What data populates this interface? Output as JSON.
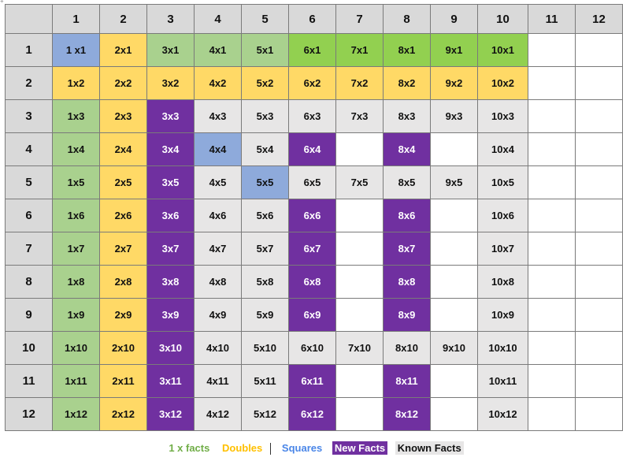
{
  "colors": {
    "ones": "#a9d18e",
    "ones_row": "#92d050",
    "doubles": "#ffd966",
    "squares": "#8eaadb",
    "new": "#7030a0",
    "known": "#e7e6e6",
    "header": "#d9d9d9"
  },
  "column_headers": [
    "1",
    "2",
    "3",
    "4",
    "5",
    "6",
    "7",
    "8",
    "9",
    "10",
    "11",
    "12"
  ],
  "rows": [
    {
      "label": "1",
      "cells": [
        [
          "1 x1",
          "squares"
        ],
        [
          "2x1",
          "doubles"
        ],
        [
          "3x1",
          "ones"
        ],
        [
          "4x1",
          "ones"
        ],
        [
          "5x1",
          "ones"
        ],
        [
          "6x1",
          "onesb"
        ],
        [
          "7x1",
          "onesb"
        ],
        [
          "8x1",
          "onesb"
        ],
        [
          "9x1",
          "onesb"
        ],
        [
          "10x1",
          "onesb"
        ],
        [
          "",
          "empty"
        ],
        [
          "",
          "empty"
        ]
      ]
    },
    {
      "label": "2",
      "cells": [
        [
          "1x2",
          "doubles"
        ],
        [
          "2x2",
          "doubles"
        ],
        [
          "3x2",
          "doubles"
        ],
        [
          "4x2",
          "doubles"
        ],
        [
          "5x2",
          "doubles"
        ],
        [
          "6x2",
          "doubles"
        ],
        [
          "7x2",
          "doubles"
        ],
        [
          "8x2",
          "doubles"
        ],
        [
          "9x2",
          "doubles"
        ],
        [
          "10x2",
          "doubles"
        ],
        [
          "",
          "empty"
        ],
        [
          "",
          "empty"
        ]
      ]
    },
    {
      "label": "3",
      "cells": [
        [
          "1x3",
          "ones"
        ],
        [
          "2x3",
          "doubles"
        ],
        [
          "3x3",
          "new"
        ],
        [
          "4x3",
          "known"
        ],
        [
          "5x3",
          "known"
        ],
        [
          "6x3",
          "known"
        ],
        [
          "7x3",
          "known"
        ],
        [
          "8x3",
          "known"
        ],
        [
          "9x3",
          "known"
        ],
        [
          "10x3",
          "known"
        ],
        [
          "",
          "empty"
        ],
        [
          "",
          "empty"
        ]
      ]
    },
    {
      "label": "4",
      "cells": [
        [
          "1x4",
          "ones"
        ],
        [
          "2x4",
          "doubles"
        ],
        [
          "3x4",
          "new"
        ],
        [
          "4x4",
          "squares"
        ],
        [
          "5x4",
          "known"
        ],
        [
          "6x4",
          "new"
        ],
        [
          "",
          "empty"
        ],
        [
          "8x4",
          "new"
        ],
        [
          "",
          "empty"
        ],
        [
          "10x4",
          "known"
        ],
        [
          "",
          "empty"
        ],
        [
          "",
          "empty"
        ]
      ]
    },
    {
      "label": "5",
      "cells": [
        [
          "1x5",
          "ones"
        ],
        [
          "2x5",
          "doubles"
        ],
        [
          "3x5",
          "new"
        ],
        [
          "4x5",
          "known"
        ],
        [
          "5x5",
          "squares"
        ],
        [
          "6x5",
          "known"
        ],
        [
          "7x5",
          "known"
        ],
        [
          "8x5",
          "known"
        ],
        [
          "9x5",
          "known"
        ],
        [
          "10x5",
          "known"
        ],
        [
          "",
          "empty"
        ],
        [
          "",
          "empty"
        ]
      ]
    },
    {
      "label": "6",
      "cells": [
        [
          "1x6",
          "ones"
        ],
        [
          "2x6",
          "doubles"
        ],
        [
          "3x6",
          "new"
        ],
        [
          "4x6",
          "known"
        ],
        [
          "5x6",
          "known"
        ],
        [
          "6x6",
          "new"
        ],
        [
          "",
          "empty"
        ],
        [
          "8x6",
          "new"
        ],
        [
          "",
          "empty"
        ],
        [
          "10x6",
          "known"
        ],
        [
          "",
          "empty"
        ],
        [
          "",
          "empty"
        ]
      ]
    },
    {
      "label": "7",
      "cells": [
        [
          "1x7",
          "ones"
        ],
        [
          "2x7",
          "doubles"
        ],
        [
          "3x7",
          "new"
        ],
        [
          "4x7",
          "known"
        ],
        [
          "5x7",
          "known"
        ],
        [
          "6x7",
          "new"
        ],
        [
          "",
          "empty"
        ],
        [
          "8x7",
          "new"
        ],
        [
          "",
          "empty"
        ],
        [
          "10x7",
          "known"
        ],
        [
          "",
          "empty"
        ],
        [
          "",
          "empty"
        ]
      ]
    },
    {
      "label": "8",
      "cells": [
        [
          "1x8",
          "ones"
        ],
        [
          "2x8",
          "doubles"
        ],
        [
          "3x8",
          "new"
        ],
        [
          "4x8",
          "known"
        ],
        [
          "5x8",
          "known"
        ],
        [
          "6x8",
          "new"
        ],
        [
          "",
          "empty"
        ],
        [
          "8x8",
          "new"
        ],
        [
          "",
          "empty"
        ],
        [
          "10x8",
          "known"
        ],
        [
          "",
          "empty"
        ],
        [
          "",
          "empty"
        ]
      ]
    },
    {
      "label": "9",
      "cells": [
        [
          "1x9",
          "ones"
        ],
        [
          "2x9",
          "doubles"
        ],
        [
          "3x9",
          "new"
        ],
        [
          "4x9",
          "known"
        ],
        [
          "5x9",
          "known"
        ],
        [
          "6x9",
          "new"
        ],
        [
          "",
          "empty"
        ],
        [
          "8x9",
          "new"
        ],
        [
          "",
          "empty"
        ],
        [
          "10x9",
          "known"
        ],
        [
          "",
          "empty"
        ],
        [
          "",
          "empty"
        ]
      ]
    },
    {
      "label": "10",
      "cells": [
        [
          "1x10",
          "ones"
        ],
        [
          "2x10",
          "doubles"
        ],
        [
          "3x10",
          "new"
        ],
        [
          "4x10",
          "known"
        ],
        [
          "5x10",
          "known"
        ],
        [
          "6x10",
          "known"
        ],
        [
          "7x10",
          "known"
        ],
        [
          "8x10",
          "known"
        ],
        [
          "9x10",
          "known"
        ],
        [
          "10x10",
          "known"
        ],
        [
          "",
          "empty"
        ],
        [
          "",
          "empty"
        ]
      ]
    },
    {
      "label": "11",
      "cells": [
        [
          "1x11",
          "ones"
        ],
        [
          "2x11",
          "doubles"
        ],
        [
          "3x11",
          "new"
        ],
        [
          "4x11",
          "known"
        ],
        [
          "5x11",
          "known"
        ],
        [
          "6x11",
          "new"
        ],
        [
          "",
          "empty"
        ],
        [
          "8x11",
          "new"
        ],
        [
          "",
          "empty"
        ],
        [
          "10x11",
          "known"
        ],
        [
          "",
          "empty"
        ],
        [
          "",
          "empty"
        ]
      ]
    },
    {
      "label": "12",
      "cells": [
        [
          "1x12",
          "ones"
        ],
        [
          "2x12",
          "doubles"
        ],
        [
          "3x12",
          "new"
        ],
        [
          "4x12",
          "known"
        ],
        [
          "5x12",
          "known"
        ],
        [
          "6x12",
          "new"
        ],
        [
          "",
          "empty"
        ],
        [
          "8x12",
          "new"
        ],
        [
          "",
          "empty"
        ],
        [
          "10x12",
          "known"
        ],
        [
          "",
          "empty"
        ],
        [
          "",
          "empty"
        ]
      ]
    }
  ],
  "legend": {
    "ones": "1 x  facts",
    "doubles": "Doubles",
    "squares": "Squares",
    "new": "New Facts",
    "known": "Known Facts"
  }
}
